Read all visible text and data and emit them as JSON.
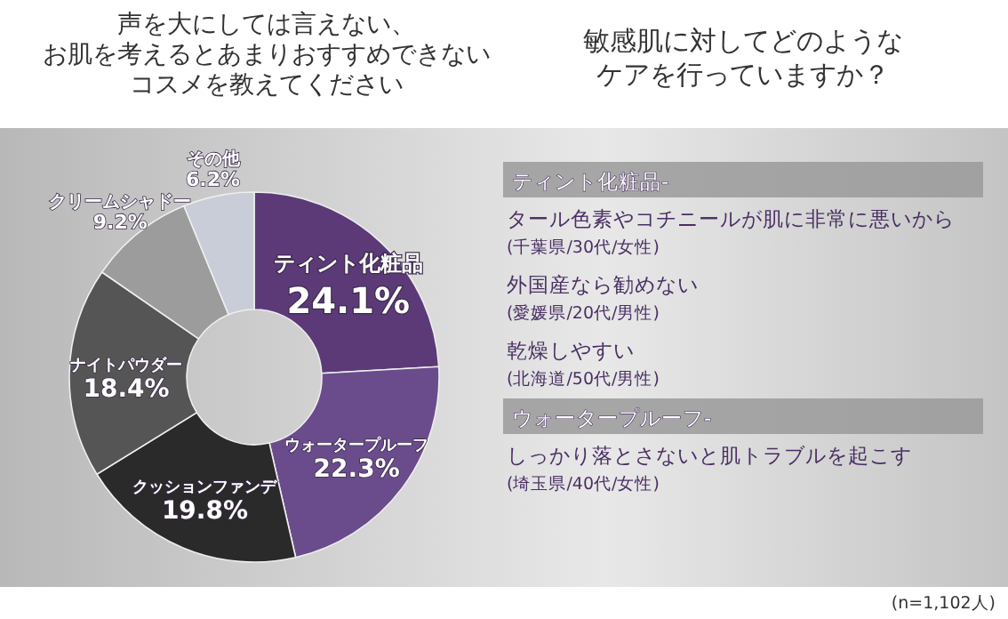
{
  "chart_data": {
    "type": "donut",
    "title": "声を大にしては言えない、お肌を考えるとあまりおすすめできないコスメを教えてください",
    "subtitle": "敏感肌に対してどのようなケアを行っていますか？",
    "categories": [
      "ティント化粧品",
      "ウォータープルーフ",
      "クッションファンデ",
      "ナイトパウダー",
      "クリームシャドー",
      "その他"
    ],
    "values": [
      24.1,
      22.3,
      19.8,
      18.4,
      9.2,
      6.2
    ],
    "colors": [
      "#5c3a78",
      "#6a4c8c",
      "#2a2a2a",
      "#555555",
      "#9c9c9c",
      "#c9cdd8"
    ],
    "value_labels": [
      "24.1%",
      "22.3%",
      "19.8%",
      "18.4%",
      "9.2%",
      "6.2%"
    ],
    "annotations": [
      "ティント化粧品-",
      "タール色素やコチニールが肌に非常に悪いから",
      "(千葉県/30代/女性)",
      "外国産なら勧めない",
      "(愛媛県/20代/男性)",
      "乾燥しやすい",
      "(北海道/50代/男性)",
      "ウォータープルーフ-",
      "しっかり落とさないと肌トラブルを起こす",
      "(埼玉県/40代/女性)",
      "(n=1,102人)"
    ]
  }
}
